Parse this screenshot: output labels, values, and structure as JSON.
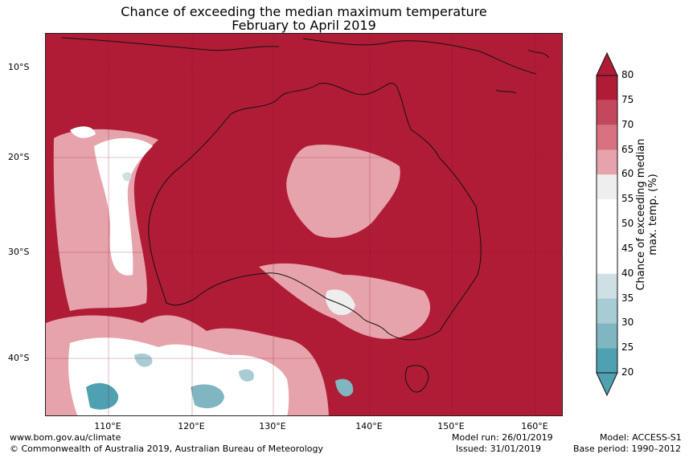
{
  "title": {
    "line1": "Chance of exceeding the median maximum temperature",
    "line2": "February to April 2019"
  },
  "map": {
    "latitude_labels": [
      "10°S",
      "20°S",
      "30°S",
      "40°S"
    ],
    "longitude_labels": [
      "110°E",
      "120°E",
      "130°E",
      "140°E",
      "150°E",
      "160°E"
    ]
  },
  "colorbar": {
    "title": "Chance of exceeding median max. temp. (%)",
    "ticks": [
      "80",
      "75",
      "70",
      "65",
      "60",
      "55",
      "50",
      "45",
      "40",
      "35",
      "30",
      "25",
      "20"
    ],
    "colors": [
      "#b01c36",
      "#c4485d",
      "#d77380",
      "#e6a3ab",
      "#eeeeee",
      "#ffffff",
      "#ffffff",
      "#ffffff",
      "#cfe0e5",
      "#a8ccd4",
      "#7fb6c2",
      "#4fa0b0"
    ]
  },
  "footer": {
    "url": "www.bom.gov.au/climate",
    "copyright": "© Commonwealth of Australia 2019, Australian Bureau of Meteorology",
    "model_run": "Model run: 26/01/2019",
    "issued": "Issued: 31/01/2019",
    "model": "Model: ACCESS-S1",
    "base_period": "Base period: 1990–2012"
  }
}
